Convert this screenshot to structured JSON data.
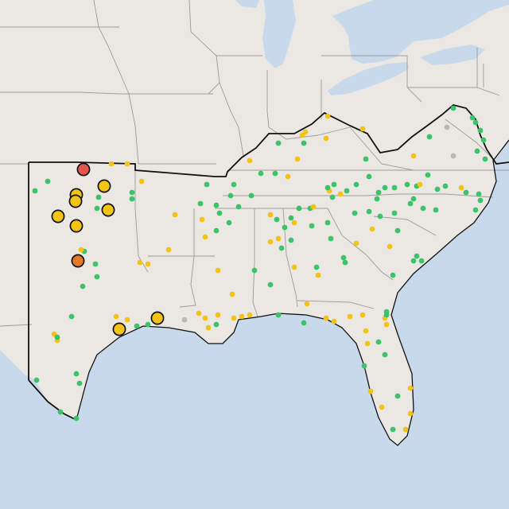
{
  "map": {
    "colors": {
      "land": "#ebe8e4",
      "water": "#c7d9ea",
      "state_border": "#9b9b9b",
      "region_border": "#111111",
      "marker_green": "#3bc36a",
      "marker_yellow": "#f3c316",
      "marker_gray": "#b8b8b8",
      "marker_orange": "#e57828",
      "marker_red": "#e4564a"
    },
    "marker_levels": [
      "green",
      "yellow",
      "gray",
      "orange",
      "red"
    ],
    "highlighted_markers": [
      {
        "level": "red"
      },
      {
        "level": "yellow"
      },
      {
        "level": "yellow"
      },
      {
        "level": "yellow"
      },
      {
        "level": "yellow"
      },
      {
        "level": "yellow"
      },
      {
        "level": "yellow"
      },
      {
        "level": "orange"
      },
      {
        "level": "yellow"
      },
      {
        "level": "yellow"
      }
    ]
  }
}
